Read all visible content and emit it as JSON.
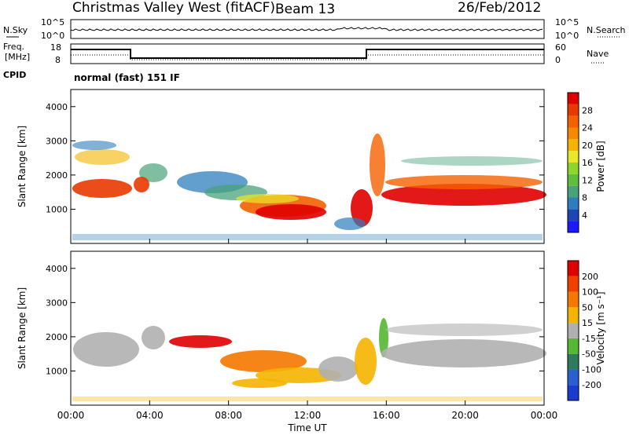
{
  "header": {
    "title": "Christmas Valley West (fitACF)",
    "beam": "Beam 13",
    "date": "26/Feb/2012"
  },
  "noise_panel": {
    "left_label": "N.Sky",
    "right_label": "N.Search",
    "left_ticks": [
      "10^5",
      "10^0"
    ],
    "right_ticks": [
      "10^5",
      "10^0"
    ]
  },
  "freq_panel": {
    "left_label_line1": "Freq.",
    "left_label_line2": "[MHz]",
    "right_label": "Nave",
    "left_ticks": [
      "18",
      "8"
    ],
    "right_ticks": [
      "60",
      "0"
    ]
  },
  "cpid": {
    "label": "CPID",
    "value": "normal (fast) 151 IF"
  },
  "chart_data": [
    {
      "type": "heatmap",
      "name": "power",
      "ylabel": "Slant Range [km]",
      "yticks": [
        "1000",
        "2000",
        "3000",
        "4000"
      ],
      "colorbar": {
        "label": "Power [dB]",
        "ticks": [
          "4",
          "8",
          "12",
          "16",
          "20",
          "24",
          "28"
        ],
        "colors": [
          "#1a1aff",
          "#1c46b4",
          "#2e7dbe",
          "#4aa27a",
          "#5fbf3c",
          "#8fd62a",
          "#e8e82a",
          "#f5b400",
          "#f58a00",
          "#f56000",
          "#e83a00",
          "#e00000"
        ]
      }
    },
    {
      "type": "heatmap",
      "name": "velocity",
      "ylabel": "Slant Range [km]",
      "xlabel": "Time UT",
      "xticks": [
        "00:00",
        "04:00",
        "08:00",
        "12:00",
        "16:00",
        "20:00",
        "00:00"
      ],
      "yticks": [
        "1000",
        "2000",
        "3000",
        "4000"
      ],
      "colorbar": {
        "label": "Velocity [m s⁻¹]",
        "ticks": [
          "200",
          "100",
          "50",
          "15",
          "-15",
          "-50",
          "-100",
          "-200"
        ],
        "colors": [
          "#1a3ccf",
          "#2a5fd0",
          "#2e7a5a",
          "#55b830",
          "#b0b0b0",
          "#f5b400",
          "#f57800",
          "#f04000",
          "#e00000"
        ]
      }
    }
  ]
}
